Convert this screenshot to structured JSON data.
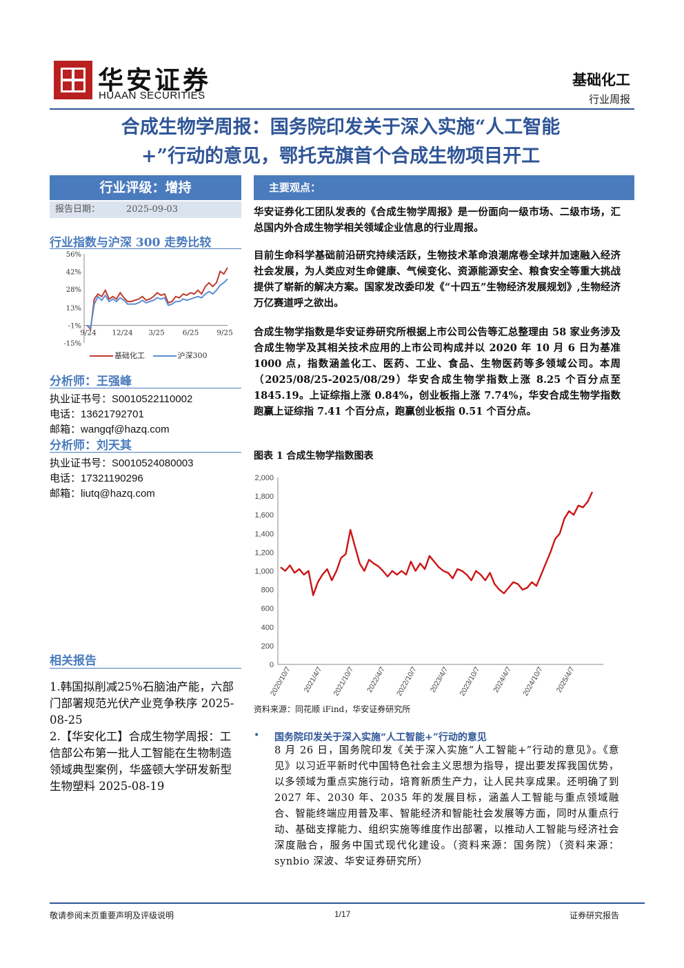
{
  "header": {
    "brand_cn": "华安证券",
    "brand_en": "HUAAN SECURITIES",
    "industry": "基础化工",
    "report_type": "行业周报"
  },
  "title_line1": "合成生物学周报：国务院印发关于深入实施“人工智能",
  "title_line2": "+”行动的意见，鄂托克旗首个合成生物项目开工",
  "sidebar": {
    "rating": "行业评级：增持",
    "date_label": "报告日期：",
    "date_value": "2025-09-03",
    "chart_title": "行业指数与沪深 300 走势比较",
    "analyst1": {
      "heading": "分析师：王强峰",
      "cert_label": "执业证书号：",
      "cert": "S0010522110002",
      "phone_label": "电话：",
      "phone": "13621792701",
      "email_label": "邮箱：",
      "email": "wangqf@hazq.com"
    },
    "analyst2": {
      "heading": "分析师：刘天其",
      "cert_label": "执业证书号：",
      "cert": "S0010524080003",
      "phone_label": "电话：",
      "phone": "17321190296",
      "email_label": "邮箱：",
      "email": "liutq@hazq.com"
    },
    "related_heading": "相关报告",
    "related1": "1.韩国拟削减25%石脑油产能，六部门部署规范光伏产业竞争秩序 2025-08-25",
    "related2": "2.【华安化工】合成生物学周报：工信部公布第一批人工智能在生物制造领域典型案例，华盛顿大学研发新型生物塑料 2025-08-19"
  },
  "main": {
    "section_label": "主要观点：",
    "p1": "华安证券化工团队发表的《合成生物学周报》是一份面向一级市场、二级市场，汇总国内外合成生物学相关领域企业信息的行业周报。",
    "p2": "目前生命科学基础前沿研究持续活跃，生物技术革命浪潮席卷全球并加速融入经济社会发展，为人类应对生命健康、气候变化、资源能源安全、粮食安全等重大挑战提供了崭新的解决方案。国家发改委印发《“十四五”生物经济发展规划》,生物经济万亿赛道呼之欲出。",
    "p3": "合成生物学指数是华安证券研究所根据上市公司公告等汇总整理由 58 家业务涉及合成生物学及其相关技术应用的上市公司构成并以 2020 年 10 月 6 日为基准 1000 点，指数涵盖化工、医药、工业、食品、生物医药等多领域公司。本周（2025/08/25-2025/08/29）华安合成生物学指数上涨 8.25 个百分点至 1845.19。上证综指上涨 0.84%，创业板指上涨 7.74%，华安合成生物学指数跑赢上证综指 7.41 个百分点，跑赢创业板指 0.51 个百分点。",
    "figure_caption": "图表 1 合成生物学指数图表",
    "figure_source": "资料来源：同花顺 iFind，华安证券研究所",
    "bullet_dot": "•",
    "bullet_title": "国务院印发关于深入实施“人工智能+”行动的意见",
    "bullet_body": "8 月 26 日，国务院印发《关于深入实施“人工智能+”行动的意见》。《意见》以习近平新时代中国特色社会主义思想为指导，提出要发挥我国优势，以多领域为重点实施行动，培育新质生产力，让人民共享成果。还明确了到 2027 年、2030 年、2035 年的发展目标，涵盖人工智能与重点领域融合、智能终端应用普及率、智能经济和智能社会发展等方面，同时从重点行动、基础支撑能力、组织实施等维度作出部署，以推动人工智能与经济社会深度融合，服务中国式现代化建设。（资料来源：国务院）（资料来源：synbio 深波、华安证券研究所）"
  },
  "footer": {
    "left": "敬请参阅末页重要声明及评级说明",
    "page": "1/17",
    "right": "证券研究报告"
  },
  "chart_data": [
    {
      "type": "line",
      "title": "行业指数与沪深 300 走势比较",
      "x_ticks": [
        "9/24",
        "12/24",
        "3/25",
        "6/25",
        "9/25"
      ],
      "y_ticks": [
        "56%",
        "42%",
        "28%",
        "13%",
        "-1%",
        "-15%"
      ],
      "ylim": [
        -15,
        56
      ],
      "series": [
        {
          "name": "基础化工",
          "color": "#c0392b",
          "values": [
            -1,
            -4,
            20,
            24,
            22,
            27,
            20,
            22,
            20,
            25,
            21,
            18,
            18,
            19,
            20,
            22,
            19,
            20,
            22,
            25,
            23,
            24,
            17,
            18,
            22,
            21,
            24,
            23,
            25,
            24,
            27,
            24,
            30,
            33,
            30,
            33,
            42,
            40,
            45
          ]
        },
        {
          "name": "沪深300",
          "color": "#5b8ed6",
          "values": [
            -1,
            -3,
            16,
            22,
            19,
            23,
            18,
            20,
            18,
            21,
            19,
            16,
            16,
            16,
            17,
            19,
            17,
            18,
            19,
            21,
            20,
            21,
            15,
            16,
            18,
            18,
            20,
            19,
            20,
            21,
            22,
            21,
            24,
            26,
            24,
            27,
            31,
            33,
            36
          ]
        }
      ],
      "legend": "bottom"
    },
    {
      "type": "line",
      "title": "图表 1 合成生物学指数图表",
      "x_ticks": [
        "2020/10/7",
        "2021/4/7",
        "2021/10/7",
        "2022/4/7",
        "2022/10/7",
        "2023/4/7",
        "2023/10/7",
        "2024/4/7",
        "2024/10/7",
        "2025/4/7"
      ],
      "y_ticks": [
        "0",
        "200",
        "400",
        "600",
        "800",
        "1,000",
        "1,200",
        "1,400",
        "1,600",
        "1,800",
        "2,000"
      ],
      "ylim": [
        0,
        2000
      ],
      "series": [
        {
          "name": "合成生物学指数",
          "color": "#cc1414",
          "values": [
            1040,
            1000,
            1060,
            980,
            1020,
            960,
            1000,
            740,
            880,
            960,
            1020,
            900,
            1000,
            1140,
            1180,
            1440,
            1260,
            1080,
            1000,
            1120,
            1080,
            1050,
            1000,
            940,
            1000,
            960,
            1000,
            960,
            1100,
            1000,
            1080,
            1020,
            1160,
            1100,
            1040,
            1000,
            980,
            920,
            1020,
            1000,
            960,
            900,
            1000,
            960,
            900,
            980,
            860,
            800,
            760,
            820,
            880,
            860,
            800,
            820,
            880,
            840,
            960,
            1080,
            1200,
            1340,
            1400,
            1560,
            1640,
            1600,
            1700,
            1680,
            1740,
            1845
          ]
        }
      ]
    }
  ]
}
